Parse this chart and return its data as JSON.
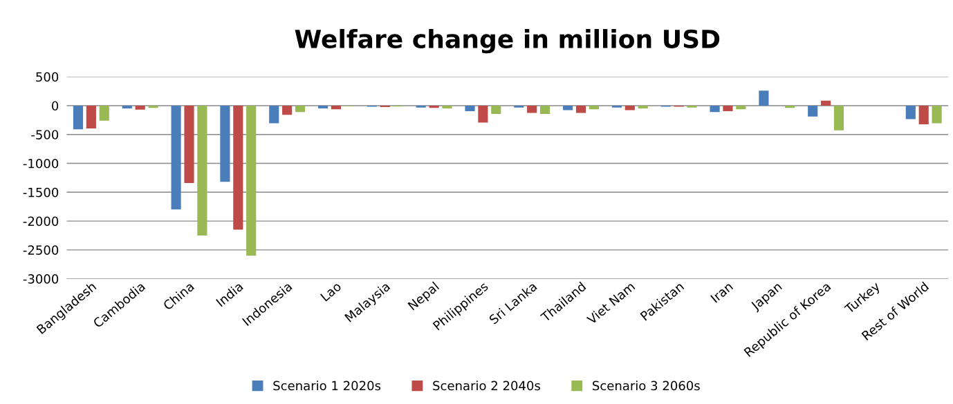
{
  "chart_data": {
    "type": "bar",
    "title": "Welfare change in million USD",
    "categories": [
      "Bangladesh",
      "Cambodia",
      "China",
      "India",
      "Indonesia",
      "Lao",
      "Malaysia",
      "Nepal",
      "Philippines",
      "Sri Lanka",
      "Thailand",
      "Viet Nam",
      "Pakistan",
      "Iran",
      "Japan",
      "Republic of Korea",
      "Turkey",
      "Rest of World"
    ],
    "series": [
      {
        "name": "Scenario 1 2020s",
        "color": "#4a7ebb",
        "values": [
          -410,
          -50,
          -1800,
          -1320,
          -305,
          -50,
          -20,
          -35,
          -95,
          -35,
          -80,
          -35,
          -20,
          -110,
          260,
          -190,
          null,
          -235
        ]
      },
      {
        "name": "Scenario 2 2040s",
        "color": "#be4b48",
        "values": [
          -395,
          -70,
          -1340,
          -2150,
          -160,
          -65,
          -25,
          -40,
          -295,
          -125,
          -125,
          -80,
          -20,
          -95,
          null,
          85,
          null,
          -325
        ]
      },
      {
        "name": "Scenario 3 2060s",
        "color": "#98b954",
        "values": [
          -260,
          -40,
          -2250,
          -2600,
          -110,
          -10,
          -15,
          -50,
          -145,
          -145,
          -65,
          -50,
          -35,
          -65,
          -40,
          -430,
          null,
          -305
        ]
      }
    ],
    "ylim": [
      -3000,
      500
    ],
    "yticks": [
      -3000,
      -2500,
      -2000,
      -1500,
      -1000,
      -500,
      0,
      500
    ],
    "grid": "y",
    "legend": "bottom"
  }
}
